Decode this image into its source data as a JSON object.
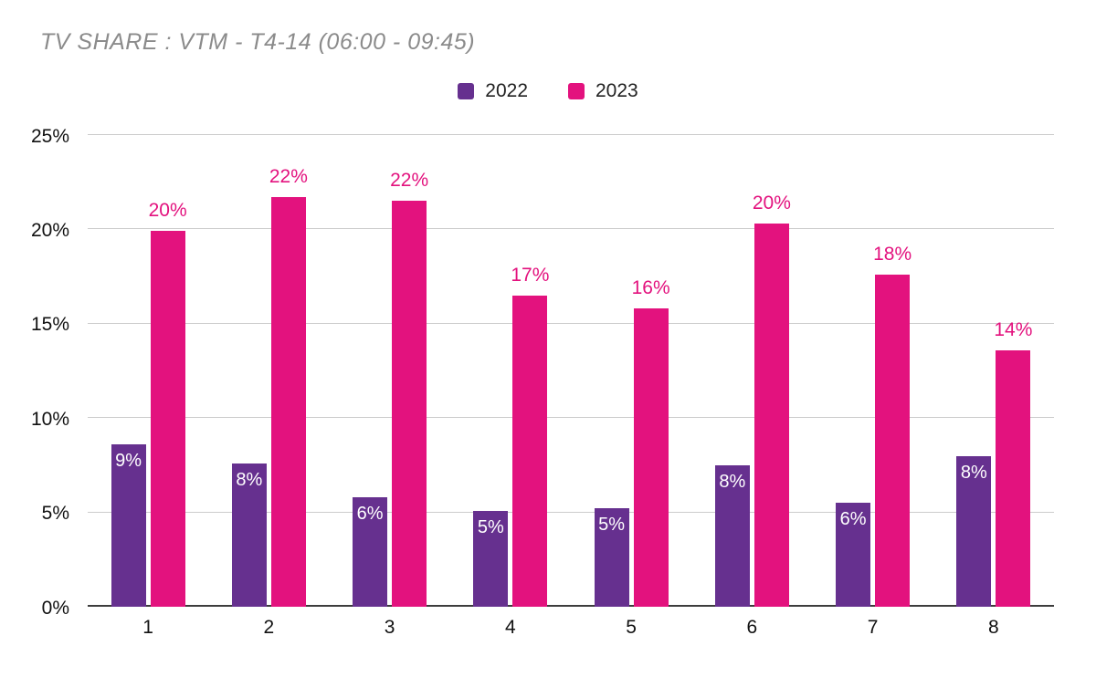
{
  "title": "TV SHARE : VTM - T4-14 (06:00 - 09:45)",
  "chart_data": {
    "type": "bar",
    "title": "TV SHARE : VTM - T4-14 (06:00 - 09:45)",
    "categories": [
      "1",
      "2",
      "3",
      "4",
      "5",
      "6",
      "7",
      "8"
    ],
    "series": [
      {
        "name": "2022",
        "color": "#66308f",
        "values": [
          8.6,
          7.6,
          5.8,
          5.1,
          5.2,
          7.5,
          5.5,
          8.0
        ],
        "labels": [
          "9%",
          "8%",
          "6%",
          "5%",
          "5%",
          "8%",
          "6%",
          "8%"
        ],
        "label_position": "inside",
        "label_color": "#ffffff"
      },
      {
        "name": "2023",
        "color": "#e3127e",
        "values": [
          19.9,
          21.7,
          21.5,
          16.5,
          15.8,
          20.3,
          17.6,
          13.6
        ],
        "labels": [
          "20%",
          "22%",
          "22%",
          "17%",
          "16%",
          "20%",
          "18%",
          "14%"
        ],
        "label_position": "above",
        "label_color": "#e3127e"
      }
    ],
    "ylim": [
      0,
      25
    ],
    "yticks": [
      0,
      5,
      10,
      15,
      20,
      25
    ],
    "ytick_labels": [
      "0%",
      "5%",
      "10%",
      "15%",
      "20%",
      "25%"
    ],
    "grid": true,
    "legend_position": "top",
    "title_color": "#8b8b8b",
    "gridline_color": "#cccccc",
    "baseline_color": "#3d3d3d"
  }
}
